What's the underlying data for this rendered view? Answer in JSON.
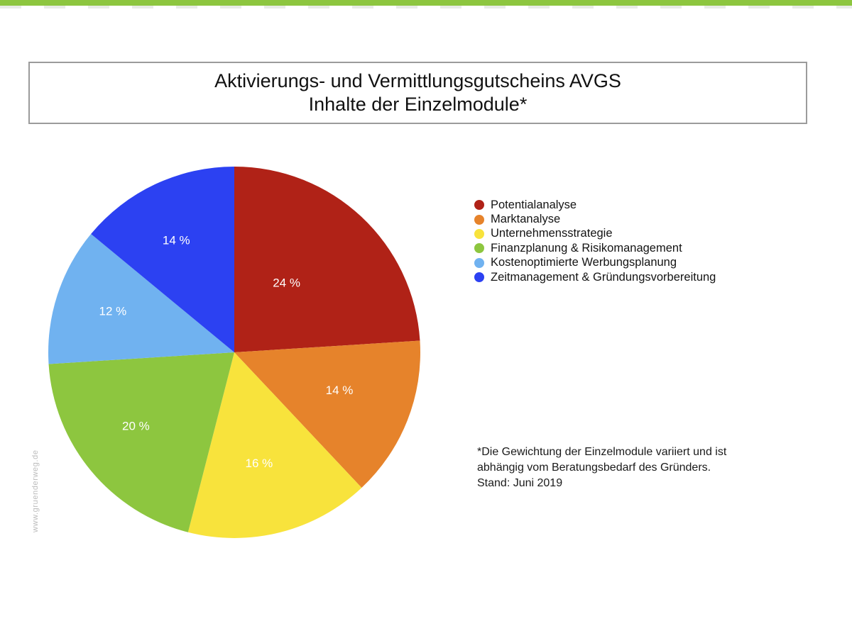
{
  "header": {
    "accent_color": "#8DC63F"
  },
  "title": {
    "line1": "Aktivierungs- und Vermittlungsgutscheins AVGS",
    "line2": "Inhalte der Einzelmodule*"
  },
  "chart_data": {
    "type": "pie",
    "title": "Aktivierungs- und Vermittlungsgutscheins AVGS — Inhalte der Einzelmodule*",
    "start_angle_deg": 0,
    "direction": "clockwise",
    "value_label_color": "#FFFFFF",
    "legend_position": "right",
    "slices": [
      {
        "label": "Potentialanalyse",
        "value": 24,
        "display": "24 %",
        "color": "#B02217"
      },
      {
        "label": "Marktanalyse",
        "value": 14,
        "display": "14 %",
        "color": "#E6832B"
      },
      {
        "label": "Unternehmensstrategie",
        "value": 16,
        "display": "16 %",
        "color": "#F8E33C"
      },
      {
        "label": "Finanzplanung & Risikomanagement",
        "value": 20,
        "display": "20 %",
        "color": "#8DC63F"
      },
      {
        "label": "Kostenoptimierte Werbungsplanung",
        "value": 12,
        "display": "12 %",
        "color": "#70B2F0"
      },
      {
        "label": "Zeitmanagement & Gründungsvorbereitung",
        "value": 14,
        "display": "14 %",
        "color": "#2C41F2"
      }
    ]
  },
  "footnote": {
    "lines": [
      "*Die Gewichtung der Einzelmodule variiert und ist",
      "abhängig vom Beratungsbedarf des Gründers.",
      "Stand: Juni 2019"
    ]
  },
  "watermark": {
    "text": "www.gruenderweg.de"
  }
}
